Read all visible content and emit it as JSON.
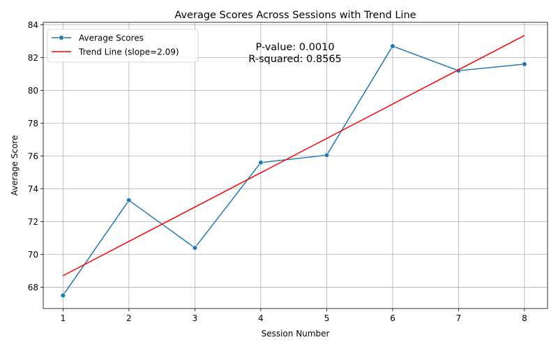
{
  "chart_data": {
    "type": "line",
    "title": "Average Scores Across Sessions with Trend Line",
    "xlabel": "Session Number",
    "ylabel": "Average Score",
    "xlim": [
      0.7,
      8.35
    ],
    "ylim": [
      66.7,
      84.15
    ],
    "grid": true,
    "legend_position": "top-left",
    "x_ticks": [
      1,
      2,
      3,
      4,
      5,
      6,
      7,
      8
    ],
    "y_ticks": [
      68,
      70,
      72,
      74,
      76,
      78,
      80,
      82,
      84
    ],
    "series": [
      {
        "name": "Average Scores",
        "type": "line-marker",
        "color": "#1f77b4",
        "x": [
          1,
          2,
          3,
          4,
          5,
          6,
          7,
          8
        ],
        "y": [
          67.5,
          73.3,
          70.4,
          75.6,
          76.05,
          82.7,
          81.2,
          81.6
        ]
      },
      {
        "name": "Trend Line (slope=2.09)",
        "type": "line",
        "color": "#ff0000",
        "x": [
          1,
          8
        ],
        "y": [
          68.7,
          83.35
        ]
      }
    ],
    "annotations": [
      "P-value: 0.0010",
      "R-squared: 0.8565"
    ]
  }
}
